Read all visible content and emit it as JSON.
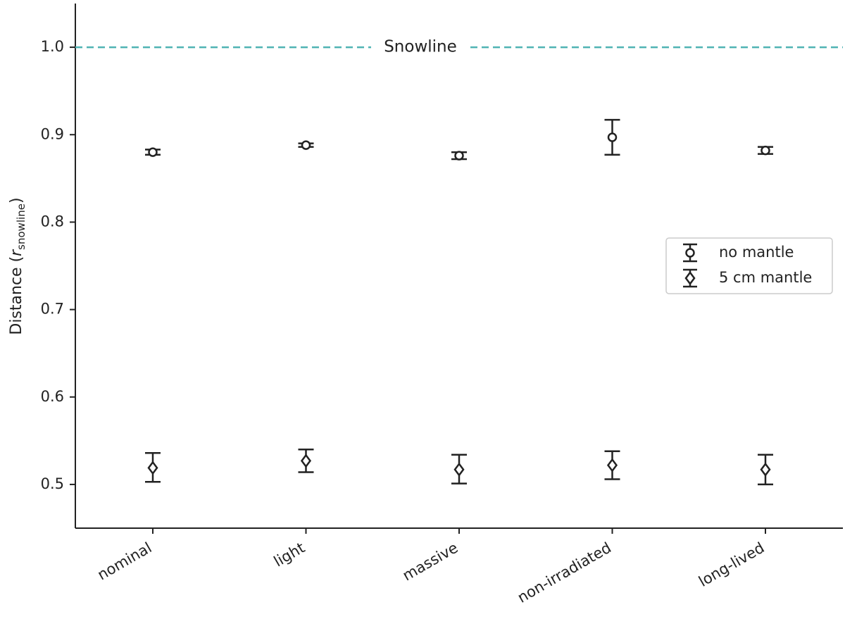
{
  "chart_data": {
    "type": "scatter",
    "title": "",
    "xlabel": "",
    "ylabel": {
      "prefix": "Distance (",
      "symbol": "r",
      "subscript": "snowline",
      "suffix": ")"
    },
    "categories": [
      "nominal",
      "light",
      "massive",
      "non-irradiated",
      "long-lived"
    ],
    "ylim": [
      0.45,
      1.05
    ],
    "yticks": [
      {
        "value": 0.5,
        "label": "0.5"
      },
      {
        "value": 0.6,
        "label": "0.6"
      },
      {
        "value": 0.7,
        "label": "0.7"
      },
      {
        "value": 0.8,
        "label": "0.8"
      },
      {
        "value": 0.9,
        "label": "0.9"
      },
      {
        "value": 1.0,
        "label": "1.0"
      }
    ],
    "series": [
      {
        "name": "no mantle",
        "marker": "circle",
        "values": [
          0.88,
          0.888,
          0.876,
          0.897,
          0.882
        ],
        "err_low": [
          0.877,
          0.886,
          0.872,
          0.877,
          0.878
        ],
        "err_high": [
          0.883,
          0.89,
          0.88,
          0.917,
          0.886
        ]
      },
      {
        "name": "5 cm mantle",
        "marker": "diamond",
        "values": [
          0.519,
          0.527,
          0.517,
          0.522,
          0.517
        ],
        "err_low": [
          0.503,
          0.514,
          0.501,
          0.506,
          0.5
        ],
        "err_high": [
          0.536,
          0.54,
          0.534,
          0.538,
          0.534
        ]
      }
    ],
    "reference_line": {
      "value": 1.0,
      "label": "Snowline",
      "color": "#4fb3b3",
      "style": "dashed"
    },
    "legend_placement": "center-right",
    "grid": false,
    "colors": {
      "marker": "#222222",
      "axis": "#222222"
    }
  }
}
